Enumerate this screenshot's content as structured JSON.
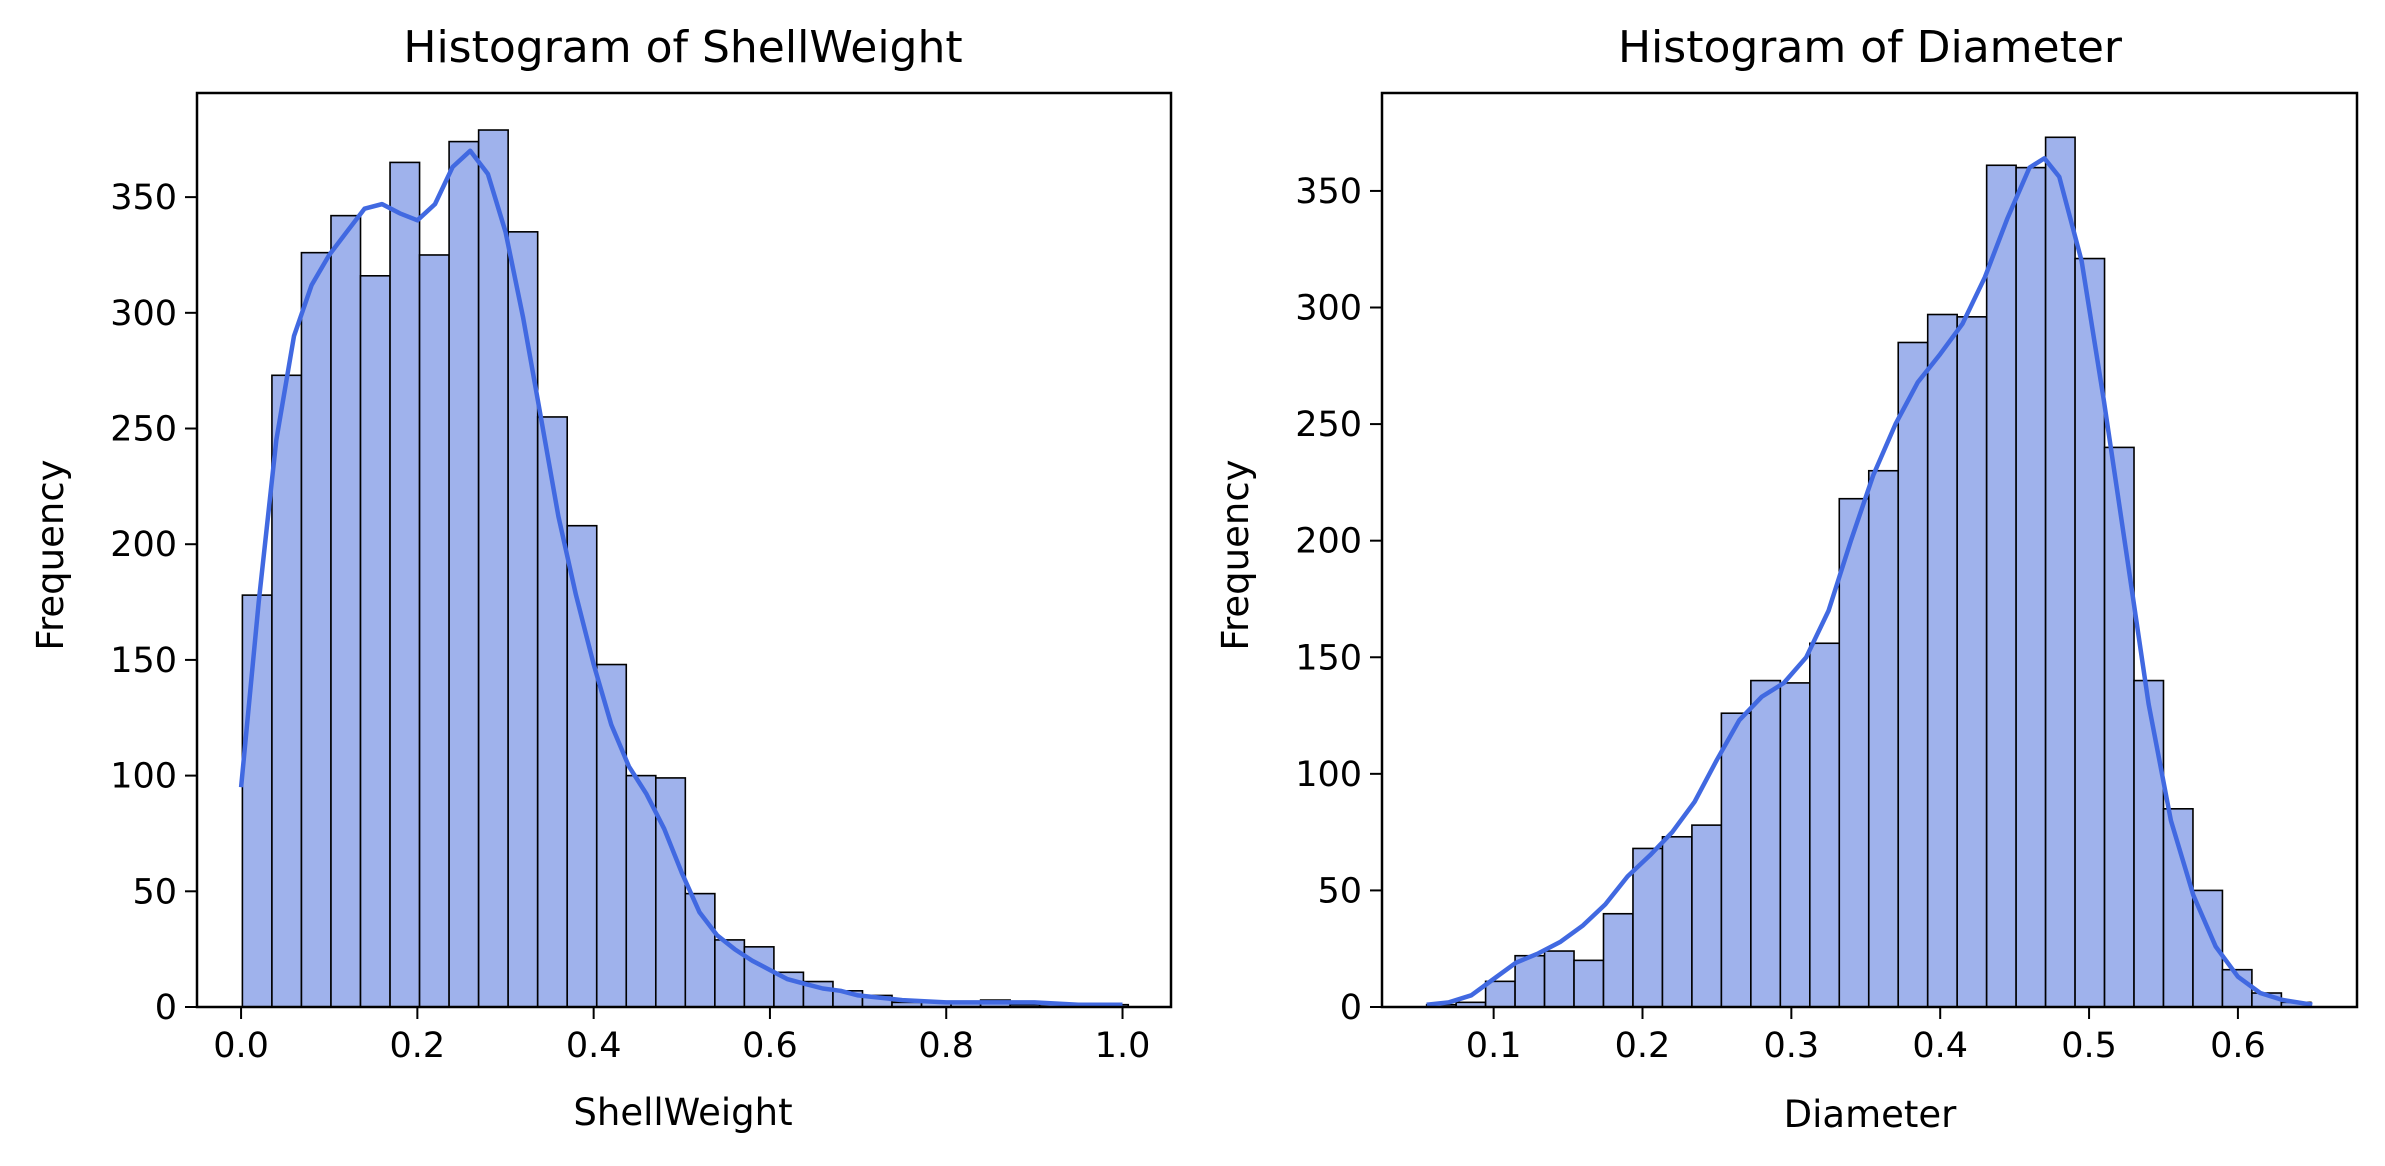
{
  "chart_data": [
    {
      "type": "bar",
      "title": "Histogram of ShellWeight",
      "xlabel": "ShellWeight",
      "ylabel": "Frequency",
      "xlim": [
        -0.05,
        1.055
      ],
      "ylim": [
        0,
        395
      ],
      "xticks": [
        0.0,
        0.2,
        0.4,
        0.6,
        0.8,
        1.0
      ],
      "xtick_labels": [
        "0.0",
        "0.2",
        "0.4",
        "0.6",
        "0.8",
        "1.0"
      ],
      "yticks": [
        0,
        50,
        100,
        150,
        200,
        250,
        300,
        350
      ],
      "ytick_labels": [
        "0",
        "50",
        "100",
        "150",
        "200",
        "250",
        "300",
        "350"
      ],
      "bin_start": 0.0015,
      "bin_width": 0.0335,
      "values": [
        178,
        273,
        326,
        342,
        316,
        365,
        325,
        374,
        379,
        335,
        255,
        208,
        148,
        100,
        99,
        49,
        29,
        26,
        15,
        11,
        7,
        5,
        2,
        2,
        2,
        3,
        1,
        1,
        1,
        1
      ],
      "kde": {
        "x": [
          0.0,
          0.02,
          0.04,
          0.06,
          0.08,
          0.1,
          0.12,
          0.14,
          0.16,
          0.18,
          0.2,
          0.22,
          0.24,
          0.26,
          0.28,
          0.3,
          0.32,
          0.34,
          0.36,
          0.38,
          0.4,
          0.42,
          0.44,
          0.46,
          0.48,
          0.5,
          0.52,
          0.54,
          0.56,
          0.58,
          0.6,
          0.62,
          0.64,
          0.66,
          0.68,
          0.7,
          0.75,
          0.8,
          0.85,
          0.9,
          0.95,
          1.0
        ],
        "y": [
          95,
          175,
          245,
          290,
          312,
          325,
          335,
          345,
          347,
          343,
          340,
          347,
          363,
          370,
          360,
          335,
          298,
          255,
          212,
          178,
          148,
          122,
          104,
          92,
          77,
          58,
          41,
          31,
          25,
          20,
          16,
          12,
          10,
          8,
          7,
          5,
          3,
          2,
          2,
          2,
          1,
          1
        ]
      },
      "bar_color": "#9fb2ec",
      "edge_color": "#000000",
      "kde_color": "#4169e1",
      "grid": false,
      "legend": false
    },
    {
      "type": "bar",
      "title": "Histogram of Diameter",
      "xlabel": "Diameter",
      "ylabel": "Frequency",
      "xlim": [
        0.025,
        0.68
      ],
      "ylim": [
        0,
        392
      ],
      "xticks": [
        0.1,
        0.2,
        0.3,
        0.4,
        0.5,
        0.6
      ],
      "xtick_labels": [
        "0.1",
        "0.2",
        "0.3",
        "0.4",
        "0.5",
        "0.6"
      ],
      "yticks": [
        0,
        50,
        100,
        150,
        200,
        250,
        300,
        350
      ],
      "ytick_labels": [
        "0",
        "50",
        "100",
        "150",
        "200",
        "250",
        "300",
        "350"
      ],
      "bin_start": 0.055,
      "bin_width": 0.0198,
      "values": [
        1,
        2,
        11,
        22,
        24,
        20,
        40,
        68,
        73,
        78,
        126,
        140,
        139,
        156,
        218,
        230,
        285,
        297,
        296,
        361,
        360,
        373,
        321,
        240,
        140,
        85,
        50,
        16,
        6,
        2
      ],
      "kde": {
        "x": [
          0.055,
          0.07,
          0.085,
          0.1,
          0.115,
          0.13,
          0.145,
          0.16,
          0.175,
          0.19,
          0.205,
          0.22,
          0.235,
          0.25,
          0.265,
          0.28,
          0.295,
          0.31,
          0.325,
          0.34,
          0.355,
          0.37,
          0.385,
          0.4,
          0.415,
          0.43,
          0.445,
          0.46,
          0.47,
          0.48,
          0.495,
          0.51,
          0.525,
          0.54,
          0.555,
          0.57,
          0.585,
          0.6,
          0.615,
          0.63,
          0.65
        ],
        "y": [
          1,
          2,
          5,
          12,
          19,
          23,
          28,
          35,
          44,
          56,
          65,
          75,
          88,
          106,
          123,
          133,
          139,
          150,
          170,
          200,
          228,
          250,
          268,
          280,
          293,
          313,
          338,
          360,
          364,
          356,
          320,
          260,
          195,
          130,
          80,
          48,
          26,
          13,
          6,
          3,
          1
        ]
      },
      "bar_color": "#9fb2ec",
      "edge_color": "#000000",
      "kde_color": "#4169e1",
      "grid": false,
      "legend": false
    }
  ]
}
